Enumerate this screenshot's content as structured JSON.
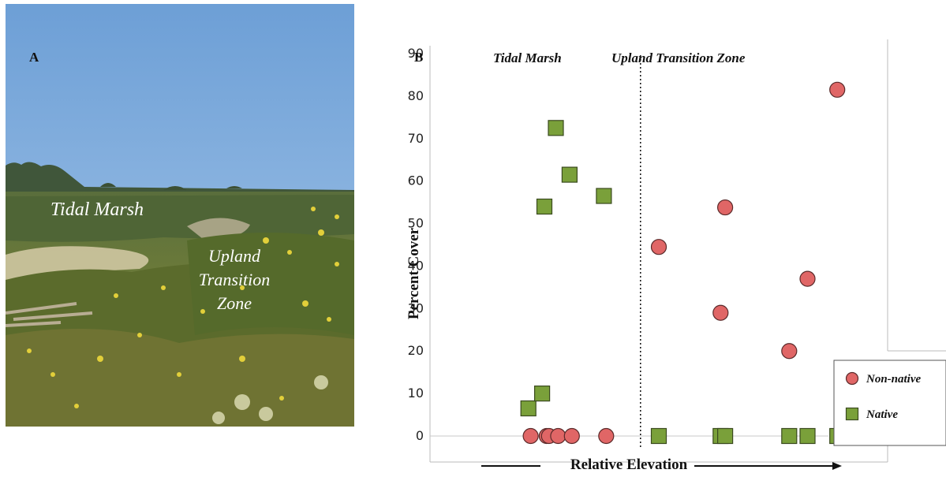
{
  "photo": {
    "panel_label": "A",
    "label_marsh": "Tidal Marsh",
    "label_upland_lines": [
      "Upland",
      "Transition",
      "Zone"
    ],
    "colors": {
      "sky_top": "#6d9fd6",
      "sky_bottom": "#a7c8ea",
      "marsh": "#4f6536",
      "shrub": "#5b6b2c",
      "flower": "#e2cf3a"
    }
  },
  "chart_data": {
    "type": "scatter",
    "panel_label": "B",
    "ylabel": "Percent Cover",
    "xlabel": "Relative Elevation",
    "ylim": [
      0,
      90
    ],
    "yticks": [
      0,
      10,
      20,
      30,
      40,
      50,
      60,
      70,
      80,
      90
    ],
    "xlim": [
      0,
      1
    ],
    "divider_x": 0.46,
    "regions": [
      {
        "label": "Tidal Marsh"
      },
      {
        "label": "Upland Transition Zone"
      }
    ],
    "legend_position": "bottom-right",
    "grid": false,
    "series": [
      {
        "name": "Non-native",
        "marker": "circle",
        "color": "#e06666",
        "points": [
          {
            "x": 0.22,
            "y": 0
          },
          {
            "x": 0.255,
            "y": 0
          },
          {
            "x": 0.26,
            "y": 0
          },
          {
            "x": 0.28,
            "y": 0
          },
          {
            "x": 0.31,
            "y": 0
          },
          {
            "x": 0.385,
            "y": 0
          },
          {
            "x": 0.5,
            "y": 44.5
          },
          {
            "x": 0.635,
            "y": 29
          },
          {
            "x": 0.645,
            "y": 53.8
          },
          {
            "x": 0.785,
            "y": 20
          },
          {
            "x": 0.825,
            "y": 37
          },
          {
            "x": 0.89,
            "y": 81.5
          }
        ]
      },
      {
        "name": "Native",
        "marker": "square",
        "color": "#7aa03a",
        "points": [
          {
            "x": 0.215,
            "y": 6.5
          },
          {
            "x": 0.245,
            "y": 10
          },
          {
            "x": 0.25,
            "y": 54
          },
          {
            "x": 0.275,
            "y": 72.5
          },
          {
            "x": 0.305,
            "y": 61.5
          },
          {
            "x": 0.38,
            "y": 56.5
          },
          {
            "x": 0.5,
            "y": 0
          },
          {
            "x": 0.635,
            "y": 0
          },
          {
            "x": 0.645,
            "y": 0
          },
          {
            "x": 0.785,
            "y": 0
          },
          {
            "x": 0.825,
            "y": 0
          },
          {
            "x": 0.89,
            "y": 0
          }
        ]
      }
    ]
  }
}
